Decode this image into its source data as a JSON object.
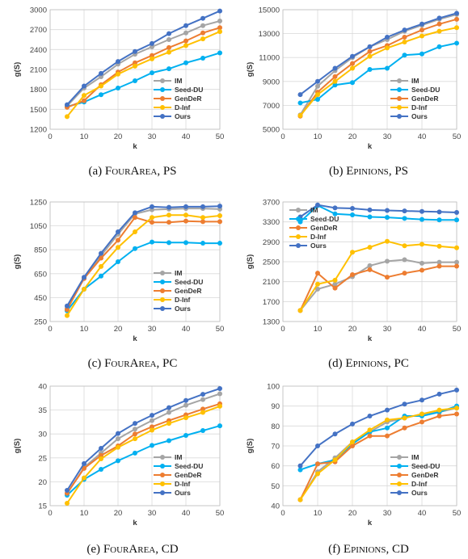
{
  "chart_data": [
    {
      "type": "line",
      "caption": "(a) FourArea, PS",
      "xlabel": "k",
      "ylabel": "g(S)",
      "xlim": [
        0,
        50
      ],
      "ylim": [
        1200,
        3000
      ],
      "xticks": [
        0,
        10,
        20,
        30,
        40,
        50
      ],
      "yticks": [
        1200,
        1500,
        1800,
        2100,
        2400,
        2700,
        3000
      ],
      "grid": true,
      "legend_position": "bottom-right",
      "x": [
        5,
        10,
        15,
        20,
        25,
        30,
        35,
        40,
        45,
        50
      ],
      "series": [
        {
          "name": "IM",
          "color": "#a5a5a5",
          "values": [
            1550,
            1820,
            1990,
            2180,
            2330,
            2440,
            2550,
            2650,
            2760,
            2830
          ]
        },
        {
          "name": "Seed-DU",
          "color": "#00b0f0",
          "values": [
            1540,
            1610,
            1720,
            1820,
            1930,
            2050,
            2110,
            2200,
            2270,
            2350
          ]
        },
        {
          "name": "GenDeR",
          "color": "#ed7d31",
          "values": [
            1530,
            1630,
            1870,
            2060,
            2200,
            2310,
            2430,
            2530,
            2650,
            2730
          ]
        },
        {
          "name": "D-Inf",
          "color": "#ffc000",
          "values": [
            1390,
            1710,
            1850,
            2030,
            2150,
            2260,
            2360,
            2460,
            2560,
            2670
          ]
        },
        {
          "name": "Ours",
          "color": "#4472c4",
          "values": [
            1570,
            1850,
            2040,
            2220,
            2370,
            2490,
            2640,
            2760,
            2870,
            2980
          ]
        }
      ]
    },
    {
      "type": "line",
      "caption": "(b) Epinions, PS",
      "xlabel": "k",
      "ylabel": "g(S)",
      "xlim": [
        0,
        50
      ],
      "ylim": [
        5000,
        15000
      ],
      "xticks": [
        0,
        10,
        20,
        30,
        40,
        50
      ],
      "yticks": [
        5000,
        7000,
        9000,
        11000,
        13000,
        15000
      ],
      "grid": true,
      "legend_position": "bottom-right",
      "x": [
        5,
        10,
        15,
        20,
        25,
        30,
        35,
        40,
        45,
        50
      ],
      "series": [
        {
          "name": "IM",
          "color": "#a5a5a5",
          "values": [
            6200,
            8600,
            9900,
            11000,
            11900,
            12500,
            13200,
            13700,
            14200,
            14600
          ]
        },
        {
          "name": "Seed-DU",
          "color": "#00b0f0",
          "values": [
            7200,
            7500,
            8700,
            8900,
            10000,
            10100,
            11200,
            11300,
            11900,
            12200
          ]
        },
        {
          "name": "GenDeR",
          "color": "#ed7d31",
          "values": [
            6100,
            8100,
            9400,
            10500,
            11500,
            12000,
            12700,
            13300,
            13800,
            14200
          ]
        },
        {
          "name": "D-Inf",
          "color": "#ffc000",
          "values": [
            6150,
            7900,
            9000,
            10100,
            11100,
            11800,
            12300,
            12800,
            13200,
            13500
          ]
        },
        {
          "name": "Ours",
          "color": "#4472c4",
          "values": [
            7900,
            9000,
            10100,
            11100,
            11900,
            12700,
            13300,
            13800,
            14300,
            14700
          ]
        }
      ]
    },
    {
      "type": "line",
      "caption": "(c) FourArea, PC",
      "xlabel": "k",
      "ylabel": "g(S)",
      "xlim": [
        0,
        50
      ],
      "ylim": [
        250,
        1250
      ],
      "xticks": [
        0,
        10,
        20,
        30,
        40,
        50
      ],
      "yticks": [
        250,
        450,
        650,
        850,
        1050,
        1250
      ],
      "grid": true,
      "legend_position": "bottom-right",
      "x": [
        5,
        10,
        15,
        20,
        25,
        30,
        35,
        40,
        45,
        50
      ],
      "series": [
        {
          "name": "IM",
          "color": "#a5a5a5",
          "values": [
            360,
            610,
            800,
            980,
            1150,
            1185,
            1190,
            1195,
            1195,
            1190
          ]
        },
        {
          "name": "Seed-DU",
          "color": "#00b0f0",
          "values": [
            340,
            520,
            630,
            750,
            860,
            915,
            910,
            910,
            905,
            905
          ]
        },
        {
          "name": "GenDeR",
          "color": "#ed7d31",
          "values": [
            350,
            610,
            780,
            930,
            1120,
            1080,
            1080,
            1090,
            1085,
            1085
          ]
        },
        {
          "name": "D-Inf",
          "color": "#ffc000",
          "values": [
            300,
            520,
            710,
            870,
            1000,
            1120,
            1140,
            1140,
            1120,
            1135
          ]
        },
        {
          "name": "Ours",
          "color": "#4472c4",
          "values": [
            380,
            620,
            820,
            1000,
            1160,
            1210,
            1205,
            1210,
            1210,
            1215
          ]
        }
      ]
    },
    {
      "type": "line",
      "caption": "(d) Epinions, PC",
      "xlabel": "k",
      "ylabel": "g(S)",
      "xlim": [
        0,
        50
      ],
      "ylim": [
        1300,
        3700
      ],
      "xticks": [
        0,
        10,
        20,
        30,
        40,
        50
      ],
      "yticks": [
        1300,
        1700,
        2100,
        2500,
        2900,
        3300,
        3700
      ],
      "grid": true,
      "legend_position": "top-left",
      "x": [
        5,
        10,
        15,
        20,
        25,
        30,
        35,
        40,
        45,
        50
      ],
      "series": [
        {
          "name": "IM",
          "color": "#a5a5a5",
          "values": [
            1520,
            1950,
            2050,
            2200,
            2420,
            2510,
            2540,
            2470,
            2490,
            2490
          ]
        },
        {
          "name": "Seed-DU",
          "color": "#00b0f0",
          "values": [
            3300,
            3630,
            3460,
            3440,
            3400,
            3390,
            3370,
            3350,
            3340,
            3340
          ]
        },
        {
          "name": "GenDeR",
          "color": "#ed7d31",
          "values": [
            1520,
            2270,
            1970,
            2240,
            2340,
            2190,
            2270,
            2330,
            2410,
            2410
          ]
        },
        {
          "name": "D-Inf",
          "color": "#ffc000",
          "values": [
            1520,
            2050,
            2130,
            2690,
            2790,
            2910,
            2820,
            2850,
            2810,
            2780
          ]
        },
        {
          "name": "Ours",
          "color": "#4472c4",
          "values": [
            3400,
            3640,
            3580,
            3570,
            3540,
            3530,
            3520,
            3510,
            3500,
            3490
          ]
        }
      ]
    },
    {
      "type": "line",
      "caption": "(e) FourArea, CD",
      "xlabel": "k",
      "ylabel": "g(S)",
      "xlim": [
        0,
        50
      ],
      "ylim": [
        15,
        40
      ],
      "xticks": [
        0,
        10,
        20,
        30,
        40,
        50
      ],
      "yticks": [
        15,
        20,
        25,
        30,
        35,
        40
      ],
      "grid": true,
      "legend_position": "bottom-right",
      "x": [
        5,
        10,
        15,
        20,
        25,
        30,
        35,
        40,
        45,
        50
      ],
      "series": [
        {
          "name": "IM",
          "color": "#a5a5a5",
          "values": [
            17.5,
            23.0,
            26.0,
            29.0,
            31.0,
            32.8,
            34.5,
            36.0,
            37.2,
            38.4
          ]
        },
        {
          "name": "Seed-DU",
          "color": "#00b0f0",
          "values": [
            17.2,
            20.5,
            22.6,
            24.4,
            26.0,
            27.6,
            28.6,
            29.7,
            30.7,
            31.7
          ]
        },
        {
          "name": "GenDeR",
          "color": "#ed7d31",
          "values": [
            17.6,
            22.8,
            25.5,
            27.5,
            30.0,
            31.5,
            32.8,
            34.0,
            35.2,
            36.3
          ]
        },
        {
          "name": "D-Inf",
          "color": "#ffc000",
          "values": [
            15.5,
            20.8,
            24.8,
            27.2,
            29.0,
            30.8,
            32.2,
            33.4,
            34.5,
            35.8
          ]
        },
        {
          "name": "Ours",
          "color": "#4472c4",
          "values": [
            18.2,
            23.8,
            27.0,
            30.1,
            32.2,
            33.9,
            35.5,
            37.0,
            38.3,
            39.5
          ]
        }
      ]
    },
    {
      "type": "line",
      "caption": "(f) Epinions, CD",
      "xlabel": "k",
      "ylabel": "g(S)",
      "xlim": [
        0,
        50
      ],
      "ylim": [
        40,
        100
      ],
      "xticks": [
        0,
        10,
        20,
        30,
        40,
        50
      ],
      "yticks": [
        40,
        50,
        60,
        70,
        80,
        90,
        100
      ],
      "grid": true,
      "legend_position": "bottom-right",
      "x": [
        5,
        10,
        15,
        20,
        25,
        30,
        35,
        40,
        45,
        50
      ],
      "series": [
        {
          "name": "IM",
          "color": "#a5a5a5",
          "values": [
            43,
            57,
            64,
            72,
            77,
            82,
            84,
            86,
            87,
            89
          ]
        },
        {
          "name": "Seed-DU",
          "color": "#00b0f0",
          "values": [
            58,
            61,
            63,
            71,
            77,
            79,
            85,
            85,
            87,
            90
          ]
        },
        {
          "name": "GenDeR",
          "color": "#ed7d31",
          "values": [
            43,
            61,
            62,
            70,
            75,
            75,
            79,
            82,
            85,
            86
          ]
        },
        {
          "name": "D-Inf",
          "color": "#ffc000",
          "values": [
            43,
            56,
            63,
            72,
            78,
            83,
            84,
            86,
            88,
            89
          ]
        },
        {
          "name": "Ours",
          "color": "#4472c4",
          "values": [
            60,
            70,
            76,
            81,
            85,
            88,
            91,
            93,
            96,
            98
          ]
        }
      ]
    }
  ]
}
